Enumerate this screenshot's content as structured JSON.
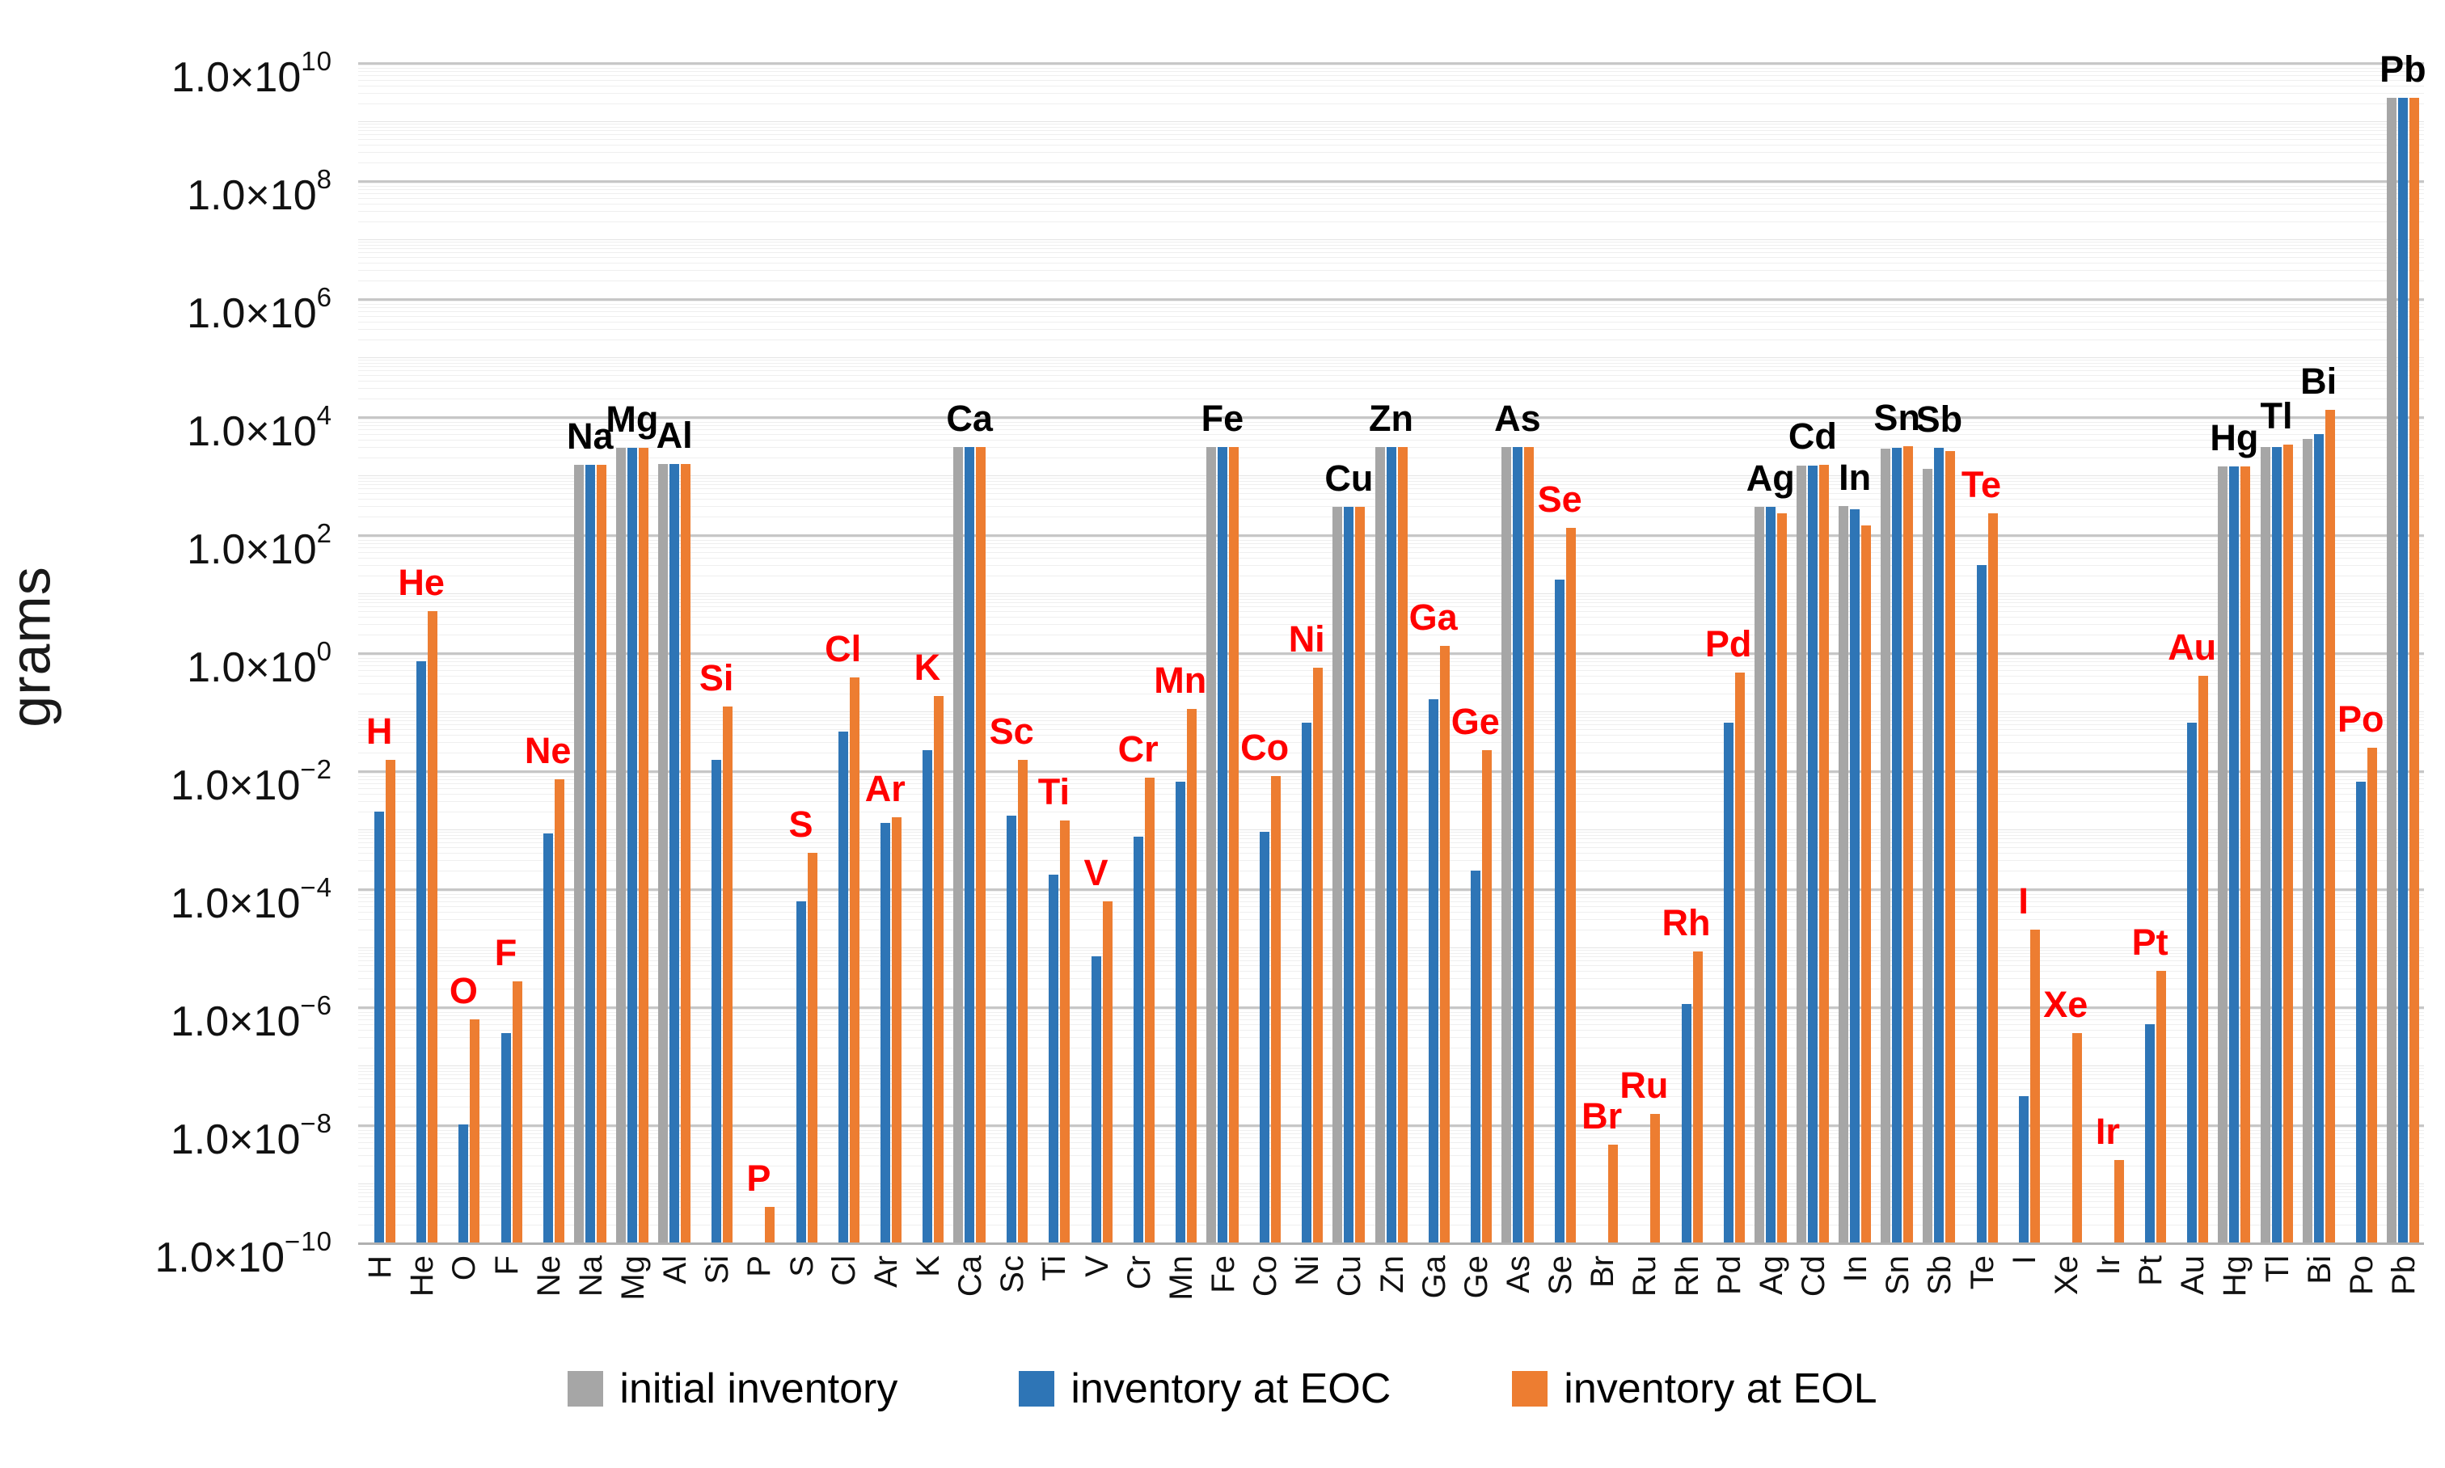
{
  "chart_data": {
    "type": "bar",
    "title": "",
    "ylabel": "grams",
    "y_scale": "log",
    "ylim": [
      1e-10,
      10000000000.0
    ],
    "grid": true,
    "legend_position": "bottom",
    "y_axis": {
      "tick_mantissa": "1.0×10",
      "tick_exponents": [
        10,
        8,
        6,
        4,
        2,
        0,
        -2,
        -4,
        -6,
        -8,
        -10
      ]
    },
    "series": [
      {
        "name": "initial inventory",
        "key": "initial",
        "color": "#A6A6A6"
      },
      {
        "name": "inventory at EOC",
        "key": "eoc",
        "color": "#2E75B6"
      },
      {
        "name": "inventory at EOL",
        "key": "eol",
        "color": "#ED7D31"
      }
    ],
    "annotation_colors": {
      "with_initial": "#000000",
      "without_initial": "#FF0000"
    },
    "categories": [
      "H",
      "He",
      "O",
      "F",
      "Ne",
      "Na",
      "Mg",
      "Al",
      "Si",
      "P",
      "S",
      "Cl",
      "Ar",
      "K",
      "Ca",
      "Sc",
      "Ti",
      "V",
      "Cr",
      "Mn",
      "Fe",
      "Co",
      "Ni",
      "Cu",
      "Zn",
      "Ga",
      "Ge",
      "As",
      "Se",
      "Br",
      "Ru",
      "Rh",
      "Pd",
      "Ag",
      "Cd",
      "In",
      "Sn",
      "Sb",
      "Te",
      "I",
      "Xe",
      "Ir",
      "Pt",
      "Au",
      "Hg",
      "Tl",
      "Bi",
      "Po",
      "Pb"
    ],
    "elements": [
      {
        "symbol": "H",
        "initial": null,
        "eoc": 0.002,
        "eol": 0.015
      },
      {
        "symbol": "He",
        "initial": null,
        "eoc": 0.7,
        "eol": 5.0
      },
      {
        "symbol": "O",
        "initial": null,
        "eoc": 1e-08,
        "eol": 6e-07
      },
      {
        "symbol": "F",
        "initial": null,
        "eoc": 3.5e-07,
        "eol": 2.7e-06
      },
      {
        "symbol": "Ne",
        "initial": null,
        "eoc": 0.00085,
        "eol": 0.007
      },
      {
        "symbol": "Na",
        "initial": 1500,
        "eoc": 1500,
        "eol": 1500
      },
      {
        "symbol": "Mg",
        "initial": 2900,
        "eoc": 2900,
        "eol": 2900
      },
      {
        "symbol": "Al",
        "initial": 1550,
        "eoc": 1550,
        "eol": 1550
      },
      {
        "symbol": "Si",
        "initial": null,
        "eoc": 0.015,
        "eol": 0.12
      },
      {
        "symbol": "P",
        "initial": null,
        "eoc": null,
        "eol": 4e-10
      },
      {
        "symbol": "S",
        "initial": null,
        "eoc": 6e-05,
        "eol": 0.0004
      },
      {
        "symbol": "Cl",
        "initial": null,
        "eoc": 0.045,
        "eol": 0.38
      },
      {
        "symbol": "Ar",
        "initial": null,
        "eoc": 0.0013,
        "eol": 0.0016
      },
      {
        "symbol": "K",
        "initial": null,
        "eoc": 0.022,
        "eol": 0.18
      },
      {
        "symbol": "Ca",
        "initial": 3000,
        "eoc": 3000,
        "eol": 3000
      },
      {
        "symbol": "Sc",
        "initial": null,
        "eoc": 0.0017,
        "eol": 0.015
      },
      {
        "symbol": "Ti",
        "initial": null,
        "eoc": 0.00017,
        "eol": 0.0014
      },
      {
        "symbol": "V",
        "initial": null,
        "eoc": 7e-06,
        "eol": 6e-05
      },
      {
        "symbol": "Cr",
        "initial": null,
        "eoc": 0.00075,
        "eol": 0.0075
      },
      {
        "symbol": "Mn",
        "initial": null,
        "eoc": 0.0065,
        "eol": 0.11
      },
      {
        "symbol": "Fe",
        "initial": 3000,
        "eoc": 3000,
        "eol": 3000
      },
      {
        "symbol": "Co",
        "initial": null,
        "eoc": 0.0009,
        "eol": 0.008
      },
      {
        "symbol": "Ni",
        "initial": null,
        "eoc": 0.065,
        "eol": 0.55
      },
      {
        "symbol": "Cu",
        "initial": 290,
        "eoc": 290,
        "eol": 290
      },
      {
        "symbol": "Zn",
        "initial": 3000,
        "eoc": 3000,
        "eol": 3000
      },
      {
        "symbol": "Ga",
        "initial": null,
        "eoc": 0.16,
        "eol": 1.3
      },
      {
        "symbol": "Ge",
        "initial": null,
        "eoc": 0.0002,
        "eol": 0.022
      },
      {
        "symbol": "As",
        "initial": 3000,
        "eoc": 3000,
        "eol": 3000
      },
      {
        "symbol": "Se",
        "initial": null,
        "eoc": 17,
        "eol": 130
      },
      {
        "symbol": "Br",
        "initial": null,
        "eoc": null,
        "eol": 4.5e-09
      },
      {
        "symbol": "Ru",
        "initial": null,
        "eoc": null,
        "eol": 1.5e-08
      },
      {
        "symbol": "Rh",
        "initial": null,
        "eoc": 1.1e-06,
        "eol": 8.5e-06
      },
      {
        "symbol": "Pd",
        "initial": null,
        "eoc": 0.065,
        "eol": 0.45
      },
      {
        "symbol": "Ag",
        "initial": 295,
        "eoc": 290,
        "eol": 230
      },
      {
        "symbol": "Cd",
        "initial": 1450,
        "eoc": 1450,
        "eol": 1500
      },
      {
        "symbol": "In",
        "initial": 300,
        "eoc": 265,
        "eol": 140
      },
      {
        "symbol": "Sn",
        "initial": 2800,
        "eoc": 2950,
        "eol": 3100
      },
      {
        "symbol": "Sb",
        "initial": 1300,
        "eoc": 2900,
        "eol": 2600
      },
      {
        "symbol": "Te",
        "initial": null,
        "eoc": 30,
        "eol": 230
      },
      {
        "symbol": "I",
        "initial": null,
        "eoc": 3e-08,
        "eol": 2e-05
      },
      {
        "symbol": "Xe",
        "initial": null,
        "eoc": null,
        "eol": 3.5e-07
      },
      {
        "symbol": "Ir",
        "initial": null,
        "eoc": null,
        "eol": 2.5e-09
      },
      {
        "symbol": "Pt",
        "initial": null,
        "eoc": 5e-07,
        "eol": 4e-06
      },
      {
        "symbol": "Au",
        "initial": null,
        "eoc": 0.065,
        "eol": 0.4
      },
      {
        "symbol": "Hg",
        "initial": 1400,
        "eoc": 1400,
        "eol": 1400
      },
      {
        "symbol": "Tl",
        "initial": 3000,
        "eoc": 3000,
        "eol": 3300
      },
      {
        "symbol": "Bi",
        "initial": 4200,
        "eoc": 5000,
        "eol": 13000
      },
      {
        "symbol": "Po",
        "initial": null,
        "eoc": 0.0065,
        "eol": 0.024
      },
      {
        "symbol": "Pb",
        "initial": 2500000000.0,
        "eoc": 2500000000.0,
        "eol": 2500000000.0
      }
    ]
  }
}
